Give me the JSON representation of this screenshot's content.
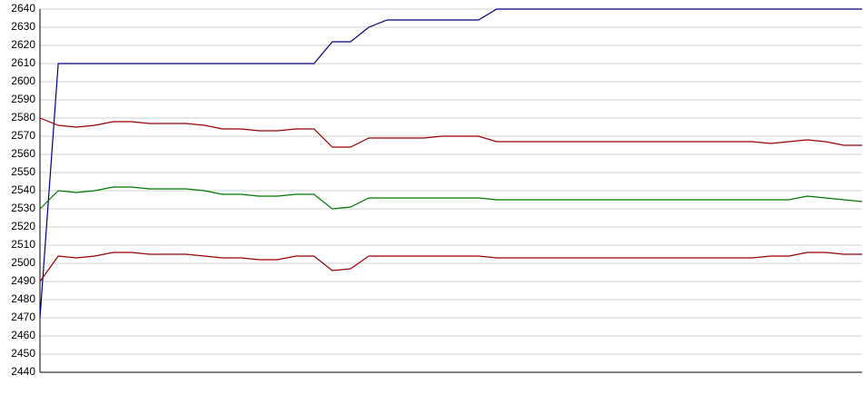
{
  "chart_data": {
    "type": "line",
    "x": [
      0,
      2,
      4,
      6,
      8,
      10,
      12,
      14,
      16,
      18,
      20,
      22,
      24,
      26,
      28,
      30,
      32,
      34,
      36,
      38,
      40,
      42,
      44,
      46,
      48,
      50,
      52,
      54,
      56,
      58,
      60,
      62,
      64,
      66,
      68,
      70,
      72,
      74,
      76,
      78,
      80,
      82,
      84,
      86,
      88,
      90
    ],
    "xlim": [
      0,
      90
    ],
    "ylim": [
      2440,
      2640
    ],
    "yticks": [
      2440,
      2450,
      2460,
      2470,
      2480,
      2490,
      2500,
      2510,
      2520,
      2530,
      2540,
      2550,
      2560,
      2570,
      2580,
      2590,
      2600,
      2610,
      2620,
      2630,
      2640
    ],
    "grid": true,
    "series": [
      {
        "color": "#000080",
        "values": [
          2470,
          2610,
          2610,
          2610,
          2610,
          2610,
          2610,
          2610,
          2610,
          2610,
          2610,
          2610,
          2610,
          2610,
          2610,
          2610,
          2622,
          2622,
          2630,
          2634,
          2634,
          2634,
          2634,
          2634,
          2634,
          2640,
          2640,
          2640,
          2640,
          2640,
          2640,
          2640,
          2640,
          2640,
          2640,
          2640,
          2640,
          2640,
          2640,
          2640,
          2640,
          2640,
          2640,
          2640,
          2640,
          2640
        ]
      },
      {
        "color": "#990000",
        "values": [
          2580,
          2576,
          2575,
          2576,
          2578,
          2578,
          2577,
          2577,
          2577,
          2576,
          2574,
          2574,
          2573,
          2573,
          2574,
          2574,
          2564,
          2564,
          2569,
          2569,
          2569,
          2569,
          2570,
          2570,
          2570,
          2567,
          2567,
          2567,
          2567,
          2567,
          2567,
          2567,
          2567,
          2567,
          2567,
          2567,
          2567,
          2567,
          2567,
          2567,
          2566,
          2567,
          2568,
          2567,
          2565,
          2565
        ]
      },
      {
        "color": "#007700",
        "values": [
          2530,
          2540,
          2539,
          2540,
          2542,
          2542,
          2541,
          2541,
          2541,
          2540,
          2538,
          2538,
          2537,
          2537,
          2538,
          2538,
          2530,
          2531,
          2536,
          2536,
          2536,
          2536,
          2536,
          2536,
          2536,
          2535,
          2535,
          2535,
          2535,
          2535,
          2535,
          2535,
          2535,
          2535,
          2535,
          2535,
          2535,
          2535,
          2535,
          2535,
          2535,
          2535,
          2537,
          2536,
          2535,
          2534
        ]
      },
      {
        "color": "#990000",
        "values": [
          2490,
          2504,
          2503,
          2504,
          2506,
          2506,
          2505,
          2505,
          2505,
          2504,
          2503,
          2503,
          2502,
          2502,
          2504,
          2504,
          2496,
          2497,
          2504,
          2504,
          2504,
          2504,
          2504,
          2504,
          2504,
          2503,
          2503,
          2503,
          2503,
          2503,
          2503,
          2503,
          2503,
          2503,
          2503,
          2503,
          2503,
          2503,
          2503,
          2503,
          2504,
          2504,
          2506,
          2506,
          2505,
          2505
        ]
      }
    ]
  }
}
